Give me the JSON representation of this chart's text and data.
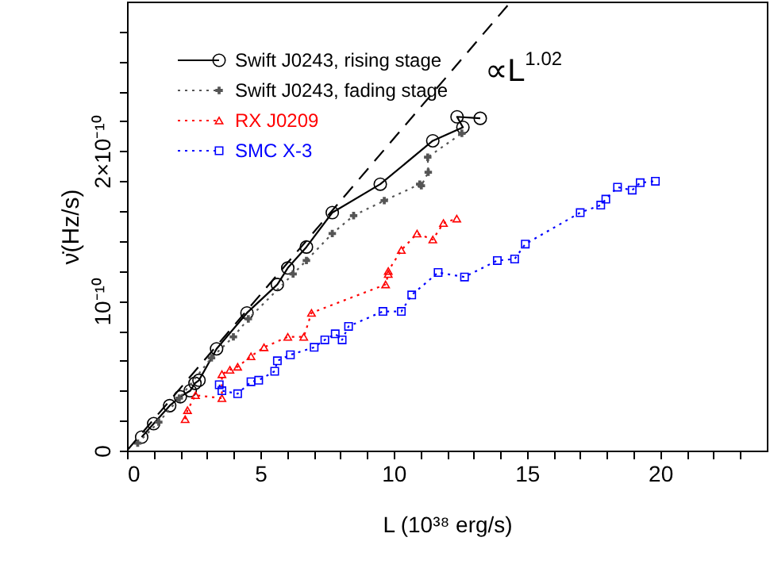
{
  "chart_data": {
    "type": "line",
    "xlabel": "L (10³⁸ erg/s)",
    "ylabel": "ν̇(Hz/s)",
    "xlim": [
      0,
      24
    ],
    "ylim": [
      0,
      3e-10
    ],
    "xticks": [
      0,
      {
        "value": 1,
        "label": null
      },
      {
        "value": 2,
        "label": null
      },
      {
        "value": 3,
        "label": null
      },
      {
        "value": 4,
        "label": null
      },
      5,
      {
        "value": 6,
        "label": null
      },
      {
        "value": 7,
        "label": null
      },
      {
        "value": 8,
        "label": null
      },
      {
        "value": 9,
        "label": null
      },
      10,
      {
        "value": 11,
        "label": null
      },
      {
        "value": 12,
        "label": null
      },
      {
        "value": 13,
        "label": null
      },
      {
        "value": 14,
        "label": null
      },
      15,
      {
        "value": 16,
        "label": null
      },
      {
        "value": 17,
        "label": null
      },
      {
        "value": 18,
        "label": null
      },
      {
        "value": 19,
        "label": null
      },
      20,
      {
        "value": 21,
        "label": null
      },
      {
        "value": 22,
        "label": null
      },
      {
        "value": 23,
        "label": null
      }
    ],
    "yticks": [
      0,
      {
        "value": 2e-11,
        "label": null
      },
      {
        "value": 4e-11,
        "label": null
      },
      {
        "value": 6e-11,
        "label": null
      },
      {
        "value": 8e-11,
        "label": null
      },
      {
        "value": 1e-10,
        "label": "10⁻¹⁰"
      },
      {
        "value": 1.2e-10,
        "label": null
      },
      {
        "value": 1.4e-10,
        "label": null
      },
      {
        "value": 1.6e-10,
        "label": null
      },
      {
        "value": 1.8e-10,
        "label": null
      },
      {
        "value": 2e-10,
        "label": "2×10⁻¹⁰"
      },
      {
        "value": 2.2e-10,
        "label": null
      },
      {
        "value": 2.4e-10,
        "label": null
      },
      {
        "value": 2.6e-10,
        "label": null
      },
      {
        "value": 2.8e-10,
        "label": null
      }
    ],
    "grid": false,
    "legend": "top left",
    "series": [
      {
        "name": "Swift J0243, rising stage",
        "color": "#000000",
        "marker": "circle",
        "line_style": "solid",
        "x": [
          0.55,
          1.0,
          1.6,
          2.0,
          2.37,
          2.55,
          2.7,
          3.36,
          4.5,
          5.64,
          6.03,
          6.73,
          7.7,
          9.5,
          11.47,
          12.6,
          12.38,
          13.25
        ],
        "values": [
          9e-12,
          1.8e-11,
          3e-11,
          3.6e-11,
          4e-11,
          4.5e-11,
          4.7e-11,
          6.8e-11,
          9.2e-11,
          1.11e-10,
          1.22e-10,
          1.36e-10,
          1.59e-10,
          1.78e-10,
          2.07e-10,
          2.16e-10,
          2.23e-10,
          2.22e-10
        ]
      },
      {
        "name": "Swift J0243, fading stage",
        "color": "#555555",
        "marker": "cross",
        "line_style": "dotted",
        "x": [
          0.4,
          1.19,
          1.96,
          3.17,
          3.99,
          4.55,
          6.23,
          6.73,
          7.7,
          8.5,
          9.65,
          10.98,
          11.04,
          11.3,
          11.28,
          12.56
        ],
        "values": [
          5e-12,
          1.9e-11,
          3.5e-11,
          6.2e-11,
          7.6e-11,
          8.8e-11,
          1.18e-10,
          1.27e-10,
          1.45e-10,
          1.57e-10,
          1.67e-10,
          1.78e-10,
          1.77e-10,
          1.86e-10,
          1.96e-10,
          2.12e-10
        ]
      },
      {
        "name": "RX J0209",
        "color": "#ff0000",
        "marker": "triangle",
        "line_style": "dotted",
        "x": [
          2.18,
          2.27,
          2.57,
          3.56,
          3.56,
          3.86,
          4.15,
          4.65,
          5.14,
          6.03,
          6.63,
          6.92,
          9.7,
          9.8,
          9.8,
          10.29,
          10.88,
          11.47,
          11.87,
          12.37
        ],
        "values": [
          2.1e-11,
          2.7e-11,
          3.7e-11,
          3.5e-11,
          5.1e-11,
          5.4e-11,
          5.6e-11,
          6.3e-11,
          6.9e-11,
          7.6e-11,
          7.6e-11,
          9.2e-11,
          1.11e-10,
          1.18e-10,
          1.2e-10,
          1.34e-10,
          1.45e-10,
          1.41e-10,
          1.52e-10,
          1.55e-10
        ]
      },
      {
        "name": "SMC X-3",
        "color": "#0000ff",
        "marker": "square",
        "line_style": "dotted",
        "x": [
          3.46,
          3.56,
          4.15,
          4.65,
          4.94,
          5.54,
          5.64,
          6.13,
          7.02,
          7.42,
          7.81,
          8.07,
          8.31,
          9.6,
          10.29,
          10.68,
          11.67,
          12.66,
          13.89,
          14.54,
          14.94,
          17.0,
          17.77,
          17.96,
          18.4,
          18.95,
          19.25,
          19.82
        ],
        "values": [
          4.4e-11,
          4e-11,
          3.8e-11,
          4.6e-11,
          4.7e-11,
          5.3e-11,
          6e-11,
          6.4e-11,
          6.9e-11,
          7.4e-11,
          7.8e-11,
          7.4e-11,
          8.3e-11,
          9.3e-11,
          9.3e-11,
          1.04e-10,
          1.19e-10,
          1.16e-10,
          1.27e-10,
          1.28e-10,
          1.38e-10,
          1.59e-10,
          1.64e-10,
          1.68e-10,
          1.76e-10,
          1.74e-10,
          1.79e-10,
          1.8e-10
        ]
      },
      {
        "color": "#000000",
        "marker": "none",
        "line_style": "dashed",
        "x": [
          0,
          14.4
        ],
        "values": [
          0,
          3e-10
        ]
      }
    ],
    "annotations": [
      "∝L$^{1.02}$"
    ]
  }
}
